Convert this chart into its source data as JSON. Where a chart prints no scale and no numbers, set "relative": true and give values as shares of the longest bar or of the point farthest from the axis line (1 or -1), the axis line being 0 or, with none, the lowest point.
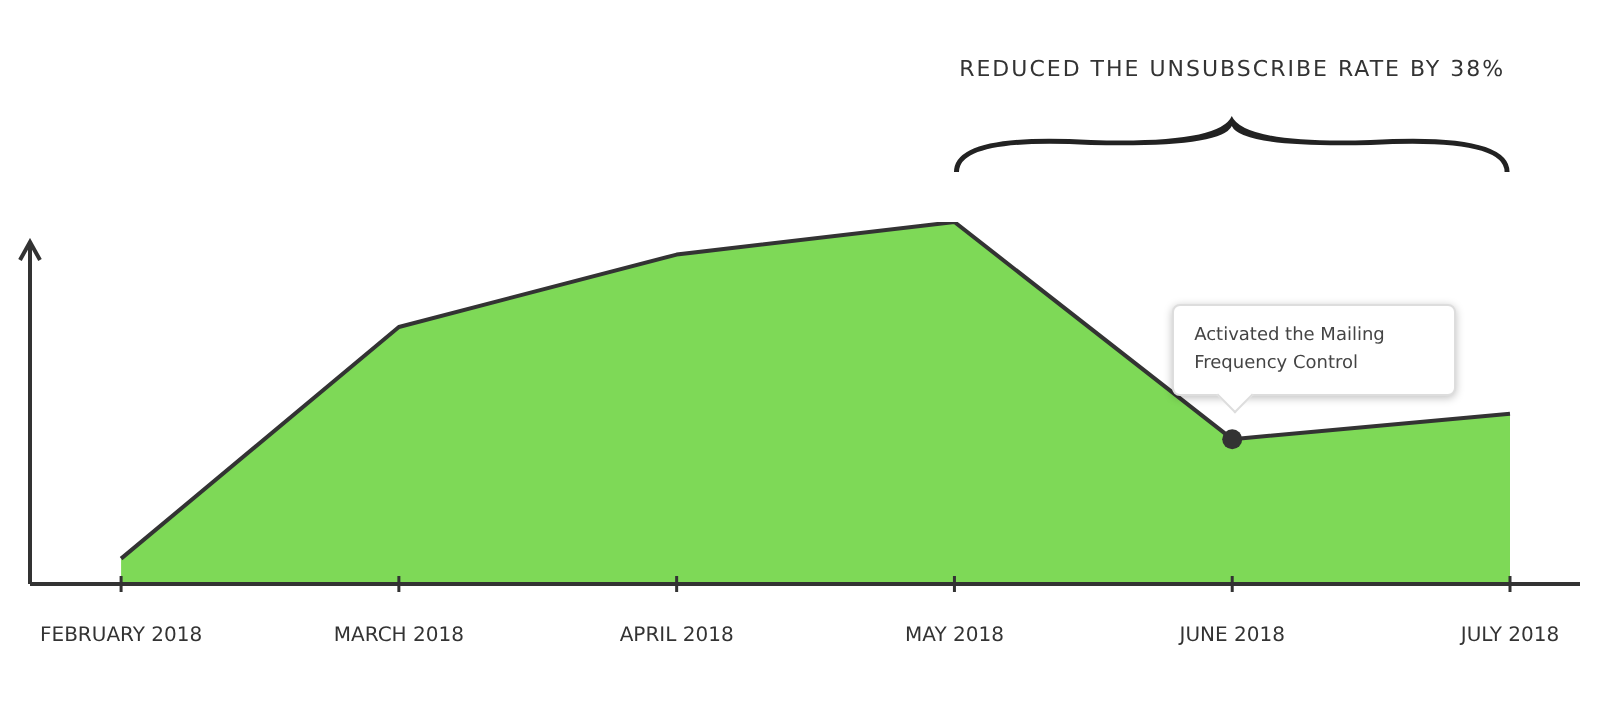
{
  "chart_data": {
    "type": "area",
    "relative": true,
    "categories": [
      "FEBRUARY 2018",
      "MARCH 2018",
      "APRIL 2018",
      "MAY 2018",
      "JUNE 2018",
      "JULY 2018"
    ],
    "series": [
      {
        "color": "#7ed957",
        "values": [
          0.07,
          0.71,
          0.91,
          1,
          0.4,
          0.47
        ]
      }
    ],
    "annotations": [
      "REDUCED THE UNSUBSCRIBE RATE BY 38%",
      "Activated the Mailing Frequency Control"
    ],
    "grid": false,
    "legend": false
  }
}
